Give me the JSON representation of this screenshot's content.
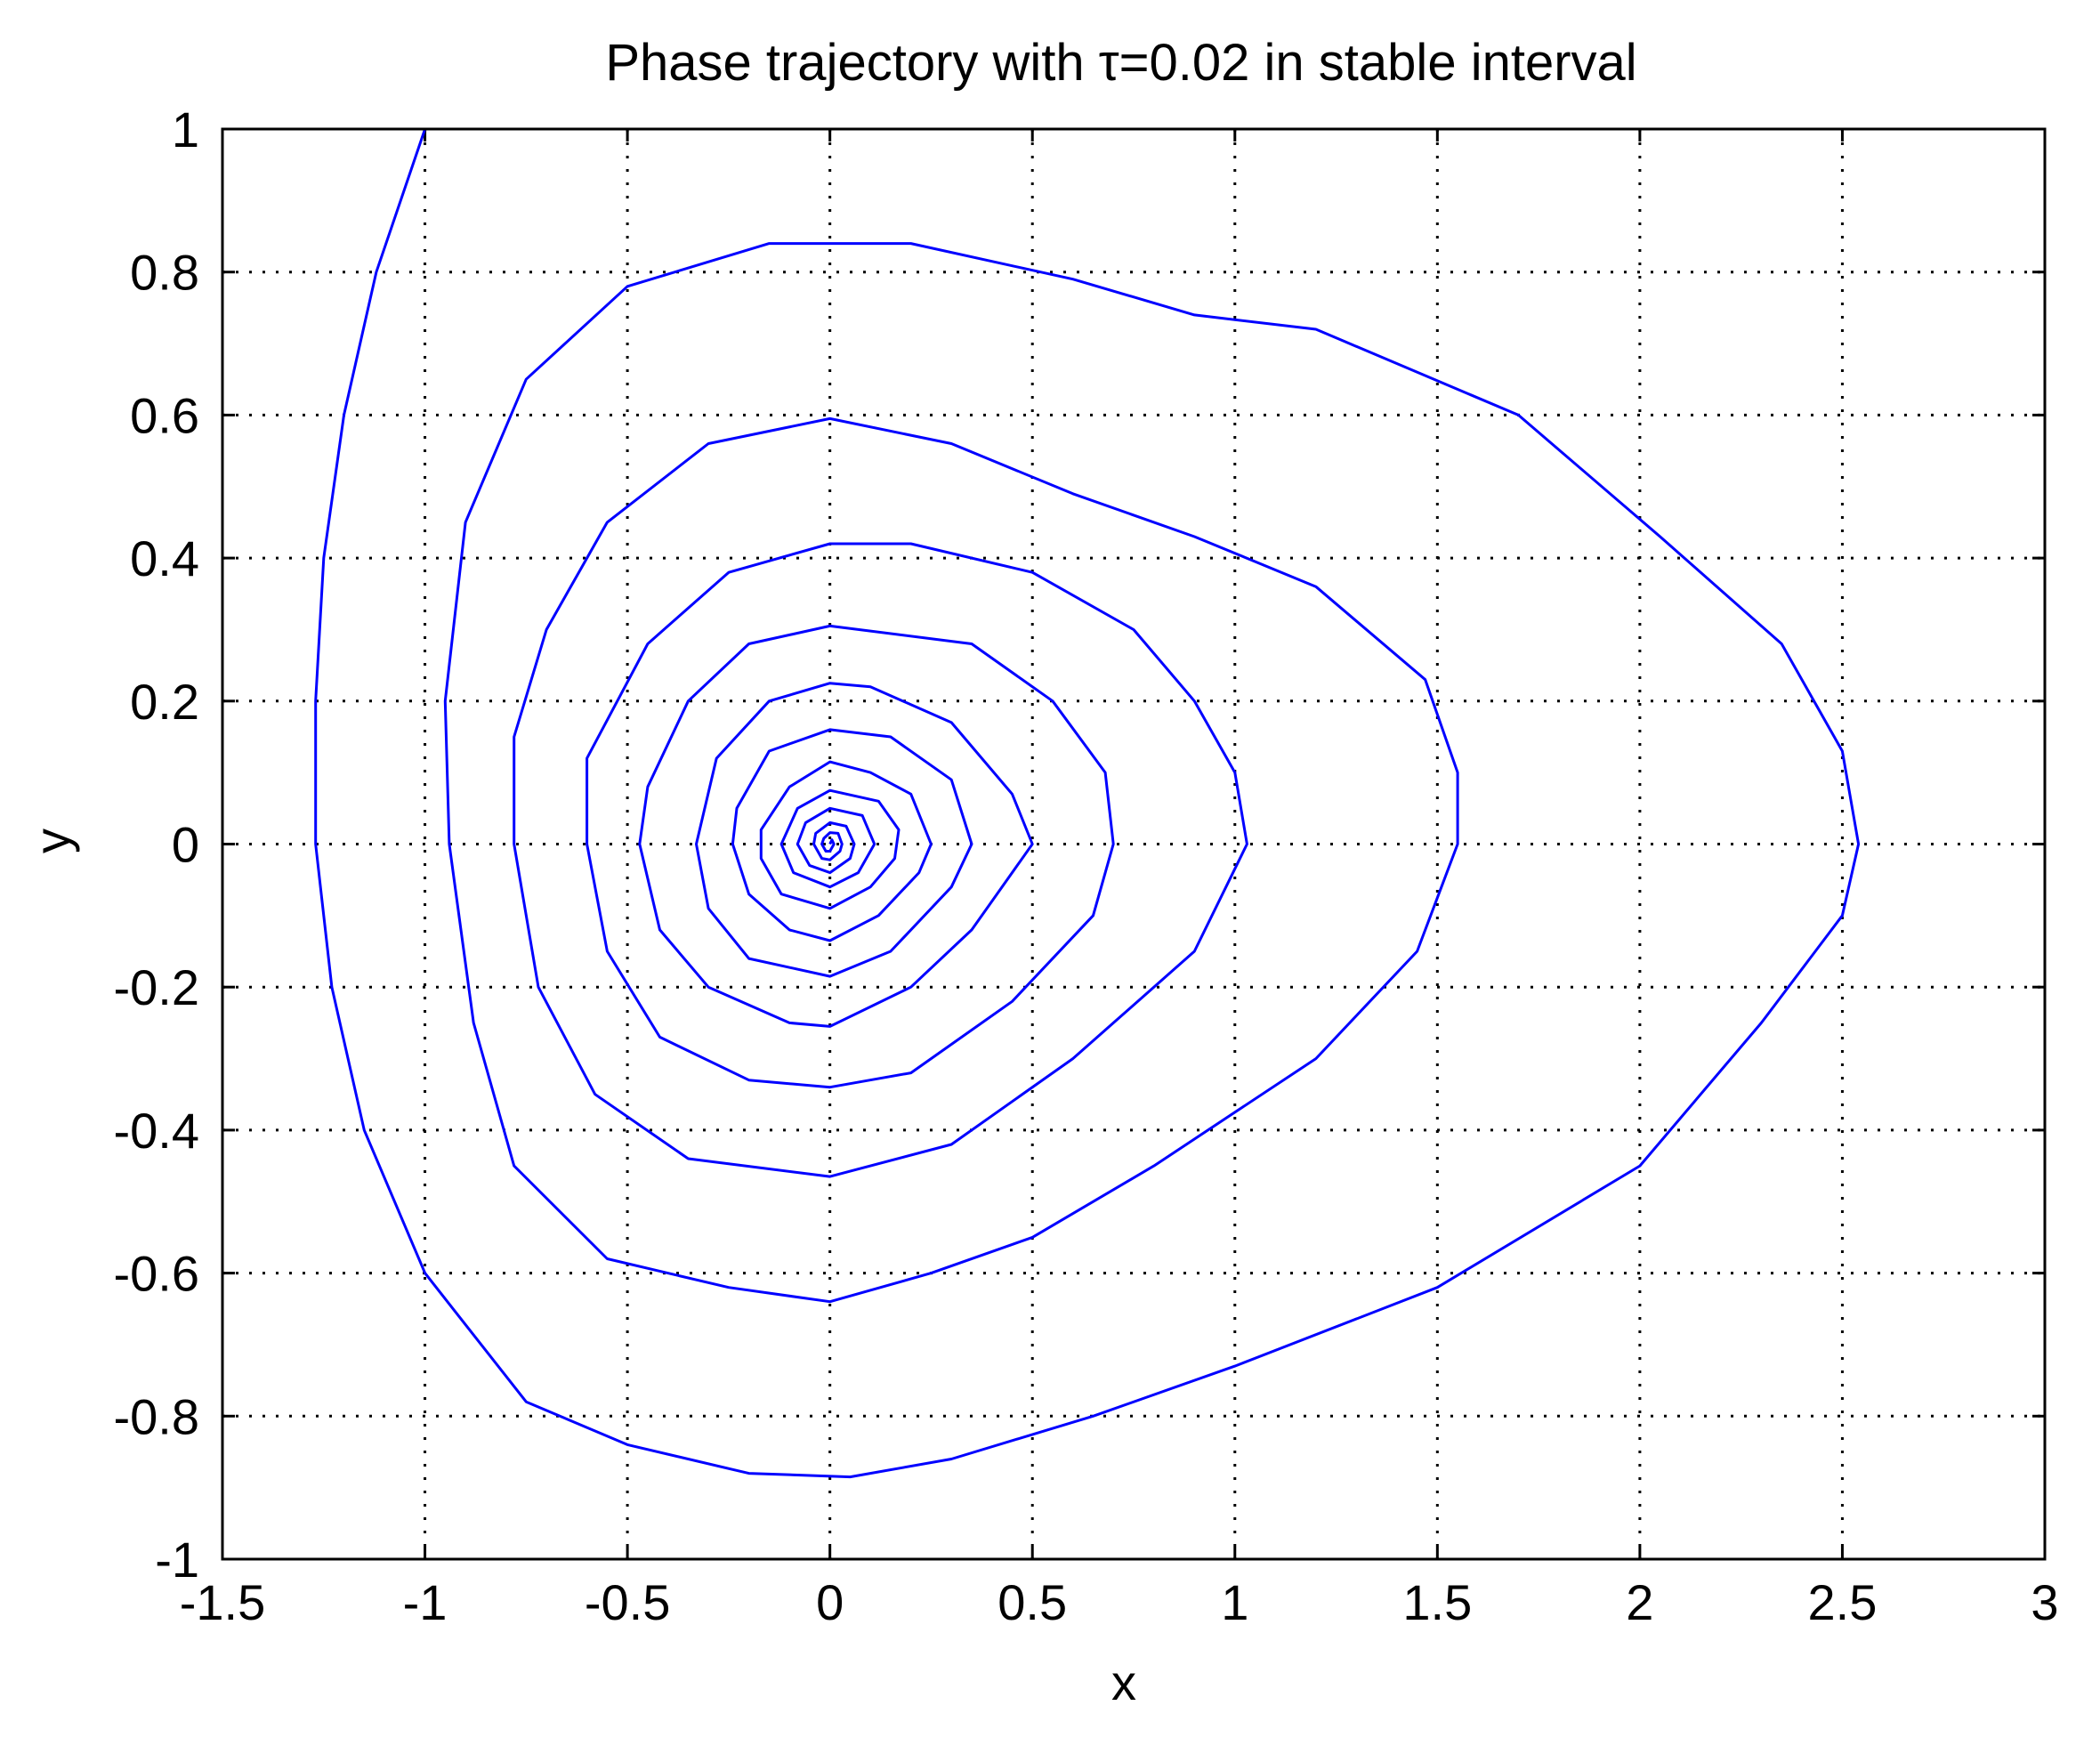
{
  "chart_data": {
    "type": "line",
    "title": "Phase trajectory with τ=0.02 in stable interval",
    "xlabel": "x",
    "ylabel": "y",
    "xlim": [
      -1.5,
      3
    ],
    "ylim": [
      -1,
      1
    ],
    "xticks": [
      -1.5,
      -1,
      -0.5,
      0,
      0.5,
      1,
      1.5,
      2,
      2.5,
      3
    ],
    "xtick_labels": [
      "-1.5",
      "-1",
      "-0.5",
      "0",
      "0.5",
      "1",
      "1.5",
      "2",
      "2.5",
      "3"
    ],
    "yticks": [
      -1,
      -0.8,
      -0.6,
      -0.4,
      -0.2,
      0,
      0.2,
      0.4,
      0.6,
      0.8,
      1
    ],
    "ytick_labels": [
      "-1",
      "-0.8",
      "-0.6",
      "-0.4",
      "-0.2",
      "0",
      "0.2",
      "0.4",
      "0.6",
      "0.8",
      "1"
    ],
    "grid": true,
    "line_color": "#0000ff",
    "series": [
      {
        "points": [
          [
            -1.0,
            1.0
          ],
          [
            -1.12,
            0.8
          ],
          [
            -1.2,
            0.6
          ],
          [
            -1.25,
            0.4
          ],
          [
            -1.27,
            0.2
          ],
          [
            -1.27,
            0.0
          ],
          [
            -1.23,
            -0.2
          ],
          [
            -1.15,
            -0.4
          ],
          [
            -1.0,
            -0.6
          ],
          [
            -0.75,
            -0.78
          ],
          [
            -0.5,
            -0.84
          ],
          [
            -0.2,
            -0.88
          ],
          [
            0.05,
            -0.885
          ],
          [
            0.3,
            -0.86
          ],
          [
            0.65,
            -0.8
          ],
          [
            1.0,
            -0.73
          ],
          [
            1.5,
            -0.62
          ],
          [
            2.0,
            -0.45
          ],
          [
            2.3,
            -0.25
          ],
          [
            2.5,
            -0.1
          ],
          [
            2.54,
            0.0
          ],
          [
            2.5,
            0.13
          ],
          [
            2.35,
            0.28
          ],
          [
            2.05,
            0.43
          ],
          [
            1.7,
            0.6
          ],
          [
            1.2,
            0.72
          ],
          [
            0.9,
            0.74
          ],
          [
            0.6,
            0.79
          ],
          [
            0.2,
            0.84
          ],
          [
            -0.15,
            0.84
          ],
          [
            -0.5,
            0.78
          ],
          [
            -0.75,
            0.65
          ],
          [
            -0.9,
            0.45
          ],
          [
            -0.95,
            0.2
          ],
          [
            -0.94,
            0.0
          ],
          [
            -0.88,
            -0.25
          ],
          [
            -0.78,
            -0.45
          ],
          [
            -0.55,
            -0.58
          ],
          [
            -0.25,
            -0.62
          ],
          [
            0.0,
            -0.64
          ],
          [
            0.25,
            -0.6
          ],
          [
            0.5,
            -0.55
          ],
          [
            0.8,
            -0.45
          ],
          [
            1.2,
            -0.3
          ],
          [
            1.45,
            -0.15
          ],
          [
            1.55,
            0.0
          ],
          [
            1.55,
            0.1
          ],
          [
            1.47,
            0.23
          ],
          [
            1.2,
            0.36
          ],
          [
            0.9,
            0.43
          ],
          [
            0.6,
            0.49
          ],
          [
            0.3,
            0.56
          ],
          [
            0.0,
            0.595
          ],
          [
            -0.3,
            0.56
          ],
          [
            -0.55,
            0.45
          ],
          [
            -0.7,
            0.3
          ],
          [
            -0.78,
            0.15
          ],
          [
            -0.78,
            0.0
          ],
          [
            -0.72,
            -0.2
          ],
          [
            -0.58,
            -0.35
          ],
          [
            -0.35,
            -0.44
          ],
          [
            0.0,
            -0.465
          ],
          [
            0.3,
            -0.42
          ],
          [
            0.6,
            -0.3
          ],
          [
            0.9,
            -0.15
          ],
          [
            1.03,
            0.0
          ],
          [
            1.0,
            0.1
          ],
          [
            0.9,
            0.2
          ],
          [
            0.75,
            0.3
          ],
          [
            0.5,
            0.38
          ],
          [
            0.2,
            0.42
          ],
          [
            0.0,
            0.42
          ],
          [
            -0.25,
            0.38
          ],
          [
            -0.45,
            0.28
          ],
          [
            -0.6,
            0.12
          ],
          [
            -0.6,
            0.0
          ],
          [
            -0.55,
            -0.15
          ],
          [
            -0.42,
            -0.27
          ],
          [
            -0.2,
            -0.33
          ],
          [
            0.0,
            -0.34
          ],
          [
            0.2,
            -0.32
          ],
          [
            0.45,
            -0.22
          ],
          [
            0.65,
            -0.1
          ],
          [
            0.7,
            0.0
          ],
          [
            0.68,
            0.1
          ],
          [
            0.55,
            0.2
          ],
          [
            0.35,
            0.28
          ],
          [
            0.0,
            0.305
          ],
          [
            -0.2,
            0.28
          ],
          [
            -0.35,
            0.2
          ],
          [
            -0.45,
            0.08
          ],
          [
            -0.47,
            0.0
          ],
          [
            -0.42,
            -0.12
          ],
          [
            -0.3,
            -0.2
          ],
          [
            -0.1,
            -0.25
          ],
          [
            0.0,
            -0.255
          ],
          [
            0.2,
            -0.2
          ],
          [
            0.35,
            -0.12
          ],
          [
            0.5,
            0.0
          ],
          [
            0.45,
            0.07
          ],
          [
            0.3,
            0.17
          ],
          [
            0.1,
            0.22
          ],
          [
            0.0,
            0.225
          ],
          [
            -0.15,
            0.2
          ],
          [
            -0.28,
            0.12
          ],
          [
            -0.33,
            0.0
          ],
          [
            -0.3,
            -0.09
          ],
          [
            -0.2,
            -0.16
          ],
          [
            0.0,
            -0.185
          ],
          [
            0.15,
            -0.15
          ],
          [
            0.3,
            -0.06
          ],
          [
            0.35,
            0.0
          ],
          [
            0.3,
            0.09
          ],
          [
            0.15,
            0.15
          ],
          [
            0.0,
            0.16
          ],
          [
            -0.15,
            0.13
          ],
          [
            -0.23,
            0.05
          ],
          [
            -0.24,
            0.0
          ],
          [
            -0.2,
            -0.07
          ],
          [
            -0.1,
            -0.12
          ],
          [
            0.0,
            -0.135
          ],
          [
            0.12,
            -0.1
          ],
          [
            0.22,
            -0.04
          ],
          [
            0.25,
            0.0
          ],
          [
            0.2,
            0.07
          ],
          [
            0.1,
            0.1
          ],
          [
            0.0,
            0.115
          ],
          [
            -0.1,
            0.08
          ],
          [
            -0.17,
            0.02
          ],
          [
            -0.17,
            -0.02
          ],
          [
            -0.12,
            -0.07
          ],
          [
            0.0,
            -0.09
          ],
          [
            0.1,
            -0.06
          ],
          [
            0.16,
            -0.02
          ],
          [
            0.17,
            0.02
          ],
          [
            0.12,
            0.06
          ],
          [
            0.0,
            0.075
          ],
          [
            -0.08,
            0.05
          ],
          [
            -0.12,
            0.0
          ],
          [
            -0.09,
            -0.04
          ],
          [
            0.0,
            -0.06
          ],
          [
            0.07,
            -0.04
          ],
          [
            0.11,
            0.0
          ],
          [
            0.08,
            0.04
          ],
          [
            0.0,
            0.05
          ],
          [
            -0.06,
            0.03
          ],
          [
            -0.08,
            0.0
          ],
          [
            -0.05,
            -0.03
          ],
          [
            0.0,
            -0.04
          ],
          [
            0.05,
            -0.02
          ],
          [
            0.06,
            0.0
          ],
          [
            0.04,
            0.025
          ],
          [
            0.0,
            0.03
          ],
          [
            -0.035,
            0.015
          ],
          [
            -0.04,
            0.0
          ],
          [
            -0.02,
            -0.02
          ],
          [
            0.0,
            -0.022
          ],
          [
            0.025,
            -0.01
          ],
          [
            0.03,
            0.0
          ],
          [
            0.02,
            0.015
          ],
          [
            0.0,
            0.016
          ],
          [
            -0.015,
            0.008
          ],
          [
            -0.02,
            0.0
          ],
          [
            -0.01,
            -0.01
          ],
          [
            0.0,
            -0.01
          ],
          [
            0.01,
            0.0
          ],
          [
            0.005,
            0.006
          ],
          [
            0.0,
            0.0
          ]
        ]
      }
    ]
  }
}
